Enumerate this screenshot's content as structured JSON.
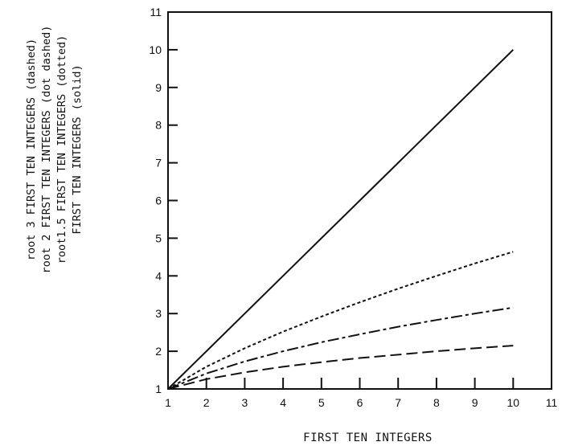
{
  "chart_data": {
    "type": "line",
    "title": "",
    "xlabel": "FIRST TEN INTEGERS",
    "ylabel_lines": [
      "root 3 FIRST TEN INTEGERS (dashed)",
      "root 2 FIRST TEN INTEGERS (dot dashed)",
      "root1.5 FIRST TEN INTEGERS (dotted)",
      "FIRST TEN INTEGERS (solid)"
    ],
    "xlim": [
      1,
      11
    ],
    "ylim": [
      1,
      11
    ],
    "x_ticks": [
      "1",
      "2",
      "3",
      "4",
      "5",
      "6",
      "7",
      "8",
      "9",
      "10",
      "11"
    ],
    "y_ticks": [
      "1",
      "2",
      "3",
      "4",
      "5",
      "6",
      "7",
      "8",
      "9",
      "10",
      "11"
    ],
    "x": [
      1,
      2,
      3,
      4,
      5,
      6,
      7,
      8,
      9,
      10
    ],
    "series": [
      {
        "style": "solid",
        "values": [
          1,
          2,
          3,
          4,
          5,
          6,
          7,
          8,
          9,
          10
        ]
      },
      {
        "style": "dotted",
        "values": [
          1,
          1.59,
          2.08,
          2.52,
          2.92,
          3.3,
          3.66,
          4.0,
          4.33,
          4.64
        ]
      },
      {
        "style": "dashdot",
        "values": [
          1,
          1.41,
          1.73,
          2.0,
          2.24,
          2.45,
          2.65,
          2.83,
          3.0,
          3.16
        ]
      },
      {
        "style": "dashed",
        "values": [
          1,
          1.26,
          1.44,
          1.59,
          1.71,
          1.82,
          1.91,
          2.0,
          2.08,
          2.15
        ]
      }
    ],
    "grid": false,
    "legend": "none"
  }
}
